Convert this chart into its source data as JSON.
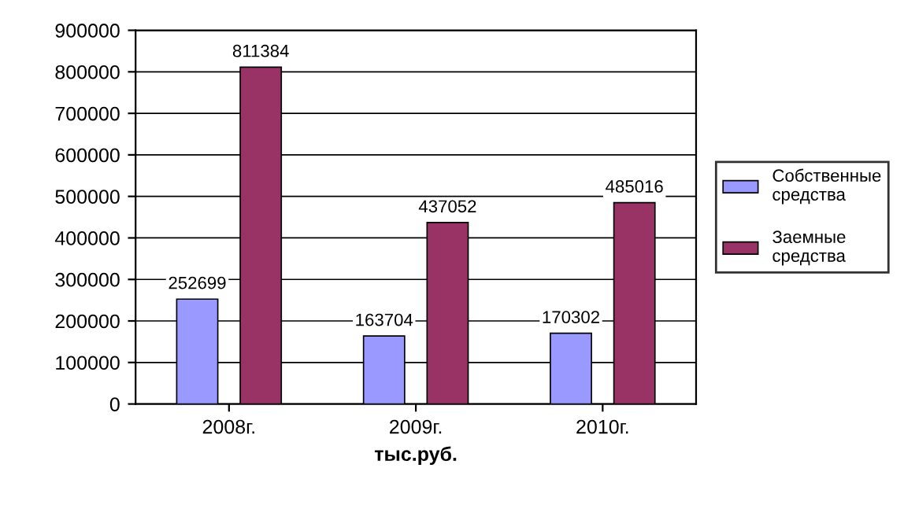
{
  "chart_data": {
    "type": "bar",
    "xlabel": "тыс.руб.",
    "categories": [
      "2008г.",
      "2009г.",
      "2010г."
    ],
    "series": [
      {
        "name": "Собственные средства",
        "color": "#9999ff",
        "values": [
          252699,
          163704,
          170302
        ]
      },
      {
        "name": "Заемные средства",
        "color": "#993366",
        "values": [
          811384,
          437052,
          485016
        ]
      }
    ],
    "ylim": [
      0,
      900000
    ],
    "yticks": [
      0,
      100000,
      200000,
      300000,
      400000,
      500000,
      600000,
      700000,
      800000,
      900000
    ],
    "grid": "y",
    "legend": "right",
    "data_labels": true
  }
}
